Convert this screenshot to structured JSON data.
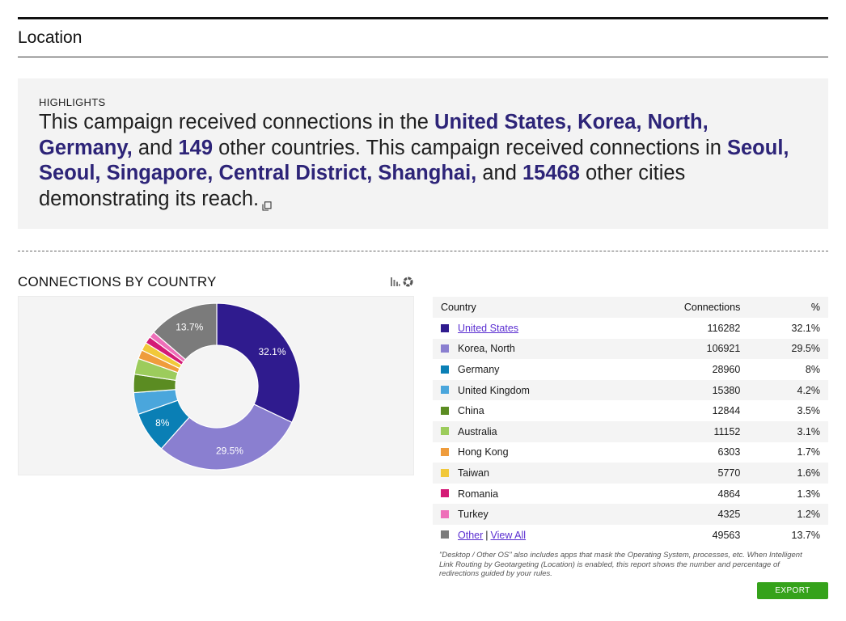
{
  "section": {
    "title": "Location"
  },
  "highlights": {
    "label": "HIGHLIGHTS",
    "p1": "This campaign received connections in the ",
    "countries": "United States, Korea, North, Germany,",
    "p2": " and ",
    "country_count": "149",
    "p3": " other countries. This campaign received connections in ",
    "cities": "Seoul, Seoul, Singapore, Central District, Shanghai,",
    "p4": " and ",
    "city_count": "15468",
    "p5": " other cities demonstrating its reach.",
    "copy_icon": "copy-icon"
  },
  "chart_toggle": {
    "bar_icon": "bar-chart-icon",
    "donut_icon": "donut-chart-icon"
  },
  "colors": {
    "highlight_text": "#2d2478",
    "link": "#5a2ed1",
    "export_button": "#35a21b"
  },
  "chart_data": {
    "type": "pie",
    "title": "CONNECTIONS BY COUNTRY",
    "donut": true,
    "categories": [
      "United States",
      "Korea, North",
      "Germany",
      "United Kingdom",
      "China",
      "Australia",
      "Hong Kong",
      "Taiwan",
      "Romania",
      "Turkey",
      "Other"
    ],
    "values": [
      116282,
      106921,
      28960,
      15380,
      12844,
      11152,
      6303,
      5770,
      4864,
      4325,
      49563
    ],
    "percent": [
      32.1,
      29.5,
      8,
      4.2,
      3.5,
      3.1,
      1.7,
      1.6,
      1.3,
      1.2,
      13.7
    ],
    "colors": [
      "#2f1b8e",
      "#8a7fd0",
      "#0a7fb5",
      "#4aa6dc",
      "#5b8c22",
      "#9ccc5c",
      "#ef9c3c",
      "#f1c83a",
      "#d41b76",
      "#ee6fb9",
      "#7b7b7b"
    ],
    "slice_labels": [
      "32.1%",
      "29.5%",
      "8%",
      "",
      "",
      "",
      "",
      "",
      "",
      "",
      "13.7%"
    ]
  },
  "table": {
    "headers": {
      "country": "Country",
      "connections": "Connections",
      "percent": "%"
    },
    "rows": [
      {
        "country": "United States",
        "connections": "116282",
        "percent": "32.1%",
        "color": "#2f1b8e",
        "link": true
      },
      {
        "country": "Korea, North",
        "connections": "106921",
        "percent": "29.5%",
        "color": "#8a7fd0",
        "link": false
      },
      {
        "country": "Germany",
        "connections": "28960",
        "percent": "8%",
        "color": "#0a7fb5",
        "link": false
      },
      {
        "country": "United Kingdom",
        "connections": "15380",
        "percent": "4.2%",
        "color": "#4aa6dc",
        "link": false
      },
      {
        "country": "China",
        "connections": "12844",
        "percent": "3.5%",
        "color": "#5b8c22",
        "link": false
      },
      {
        "country": "Australia",
        "connections": "11152",
        "percent": "3.1%",
        "color": "#9ccc5c",
        "link": false
      },
      {
        "country": "Hong Kong",
        "connections": "6303",
        "percent": "1.7%",
        "color": "#ef9c3c",
        "link": false
      },
      {
        "country": "Taiwan",
        "connections": "5770",
        "percent": "1.6%",
        "color": "#f1c83a",
        "link": false
      },
      {
        "country": "Romania",
        "connections": "4864",
        "percent": "1.3%",
        "color": "#d41b76",
        "link": false
      },
      {
        "country": "Turkey",
        "connections": "4325",
        "percent": "1.2%",
        "color": "#ee6fb9",
        "link": false
      }
    ],
    "other": {
      "label": "Other",
      "separator": "|",
      "view_all": "View All",
      "connections": "49563",
      "percent": "13.7%",
      "color": "#7b7b7b"
    }
  },
  "footnote": "\"Desktop / Other OS\" also includes apps that mask the Operating System, processes, etc. When Intelligent Link Routing by Geotargeting (Location) is enabled, this report shows the number and percentage of redirections guided by your rules.",
  "export": {
    "label": "EXPORT"
  }
}
